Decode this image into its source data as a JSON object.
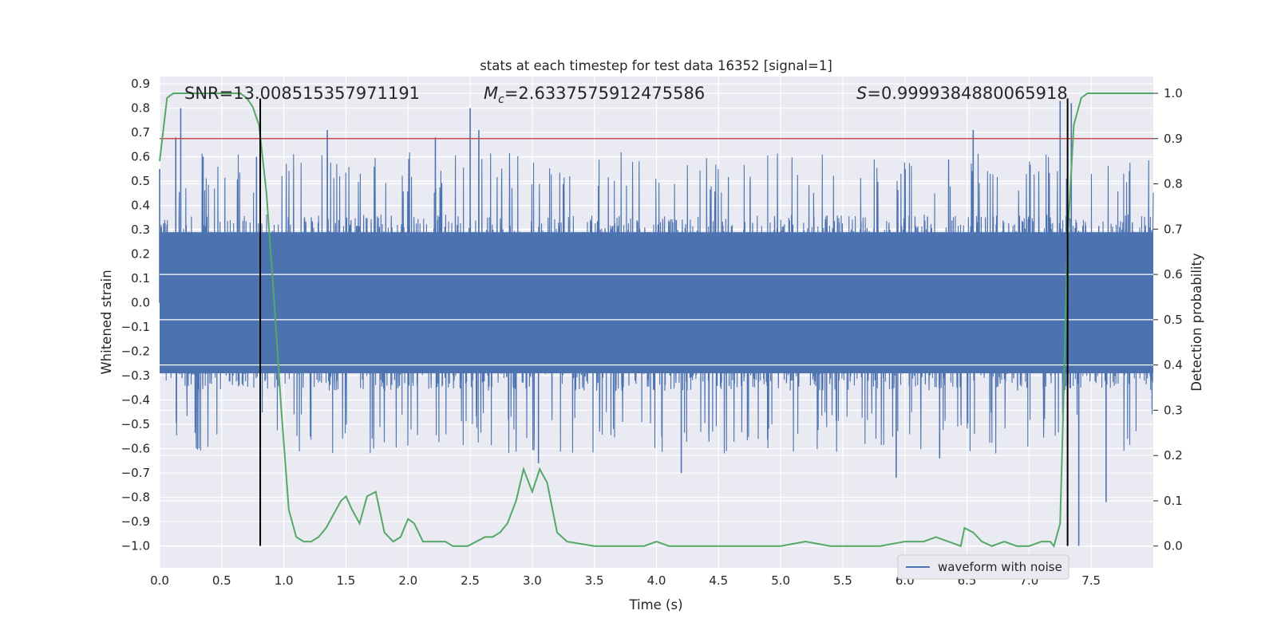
{
  "chart_data": {
    "type": "line",
    "title": "stats at each timestep for test data 16352 [signal=1]",
    "xlabel": "Time (s)",
    "ylabel_left": "Whitened strain",
    "ylabel_right": "Detection probability",
    "xlim": [
      0.0,
      8.0
    ],
    "ylim_left": [
      -1.09,
      0.93
    ],
    "ylim_right": [
      -0.048,
      1.037
    ],
    "x_ticks": [
      "0.0",
      "0.5",
      "1.0",
      "1.5",
      "2.0",
      "2.5",
      "3.0",
      "3.5",
      "4.0",
      "4.5",
      "5.0",
      "5.5",
      "6.0",
      "6.5",
      "7.0",
      "7.5"
    ],
    "y_left_ticks": [
      "0.9",
      "0.8",
      "0.7",
      "0.6",
      "0.5",
      "0.4",
      "0.3",
      "0.2",
      "0.1",
      "0.0",
      "−0.1",
      "−0.2",
      "−0.3",
      "−0.4",
      "−0.5",
      "−0.6",
      "−0.7",
      "−0.8",
      "−0.9",
      "−1.0"
    ],
    "y_right_ticks": [
      "0.0",
      "0.1",
      "0.2",
      "0.3",
      "0.4",
      "0.5",
      "0.6",
      "0.7",
      "0.8",
      "0.9",
      "1.0"
    ],
    "annotations": {
      "snr": "SNR=13.008515357971191",
      "mc_symbol": "M",
      "mc_sub": "c",
      "mc_value": "=2.6337575912475586",
      "s_symbol": "S",
      "s_value": "=0.9999384880065918"
    },
    "legend": {
      "label": "waveform with noise",
      "position": "lower-right"
    },
    "threshold": {
      "value": 0.9,
      "color": "#c44e52"
    },
    "vlines": [
      0.81,
      7.31
    ],
    "vline_range": [
      -1.0,
      0.84
    ],
    "waveform": {
      "name": "waveform with noise",
      "color": "#4c72b0",
      "samples": 4096,
      "core_amplitude": 0.29,
      "spikes": [
        [
          0.0,
          0.55
        ],
        [
          0.13,
          0.68
        ],
        [
          0.17,
          0.8
        ],
        [
          0.35,
          0.6
        ],
        [
          0.78,
          0.6
        ],
        [
          1.35,
          0.71
        ],
        [
          2.22,
          0.68
        ],
        [
          2.5,
          0.8
        ],
        [
          2.57,
          0.71
        ],
        [
          3.05,
          -0.66
        ],
        [
          5.93,
          -0.72
        ],
        [
          6.55,
          0.71
        ],
        [
          7.25,
          0.83
        ],
        [
          7.34,
          0.82
        ],
        [
          7.4,
          -1.0
        ],
        [
          7.62,
          -0.82
        ],
        [
          4.2,
          -0.7
        ],
        [
          6.28,
          -0.64
        ]
      ],
      "envelope": [
        0.45,
        0.62
      ]
    },
    "probability": {
      "name": "detection probability",
      "color": "#55a868",
      "x": [
        0.0,
        0.06,
        0.11,
        0.16,
        0.5,
        0.65,
        0.7,
        0.75,
        0.8,
        0.86,
        0.92,
        0.98,
        1.04,
        1.1,
        1.16,
        1.22,
        1.28,
        1.34,
        1.4,
        1.46,
        1.5,
        1.55,
        1.61,
        1.67,
        1.74,
        1.81,
        1.88,
        1.94,
        2.0,
        2.05,
        2.12,
        2.18,
        2.24,
        2.3,
        2.36,
        2.42,
        2.48,
        2.55,
        2.62,
        2.68,
        2.74,
        2.8,
        2.87,
        2.93,
        3.0,
        3.06,
        3.12,
        3.2,
        3.28,
        3.5,
        3.9,
        4.0,
        4.1,
        4.5,
        4.8,
        5.0,
        5.2,
        5.4,
        5.8,
        6.0,
        6.15,
        6.25,
        6.35,
        6.45,
        6.48,
        6.55,
        6.62,
        6.7,
        6.8,
        6.9,
        7.0,
        7.1,
        7.17,
        7.2,
        7.25,
        7.28,
        7.31,
        7.36,
        7.42,
        7.47,
        7.53,
        7.6,
        8.0
      ],
      "y": [
        0.85,
        0.99,
        1.0,
        1.0,
        1.0,
        1.0,
        0.99,
        0.97,
        0.93,
        0.78,
        0.55,
        0.3,
        0.08,
        0.02,
        0.01,
        0.01,
        0.02,
        0.04,
        0.07,
        0.1,
        0.11,
        0.08,
        0.05,
        0.11,
        0.12,
        0.03,
        0.01,
        0.02,
        0.06,
        0.05,
        0.01,
        0.01,
        0.01,
        0.01,
        0.0,
        0.0,
        0.0,
        0.01,
        0.02,
        0.02,
        0.03,
        0.05,
        0.1,
        0.17,
        0.12,
        0.17,
        0.14,
        0.03,
        0.01,
        0.0,
        0.0,
        0.01,
        0.0,
        0.0,
        0.0,
        0.0,
        0.01,
        0.0,
        0.0,
        0.01,
        0.01,
        0.02,
        0.01,
        0.0,
        0.04,
        0.03,
        0.01,
        0.0,
        0.01,
        0.0,
        0.0,
        0.01,
        0.01,
        0.0,
        0.05,
        0.35,
        0.68,
        0.93,
        0.99,
        1.0,
        1.0,
        1.0,
        1.0
      ]
    }
  }
}
